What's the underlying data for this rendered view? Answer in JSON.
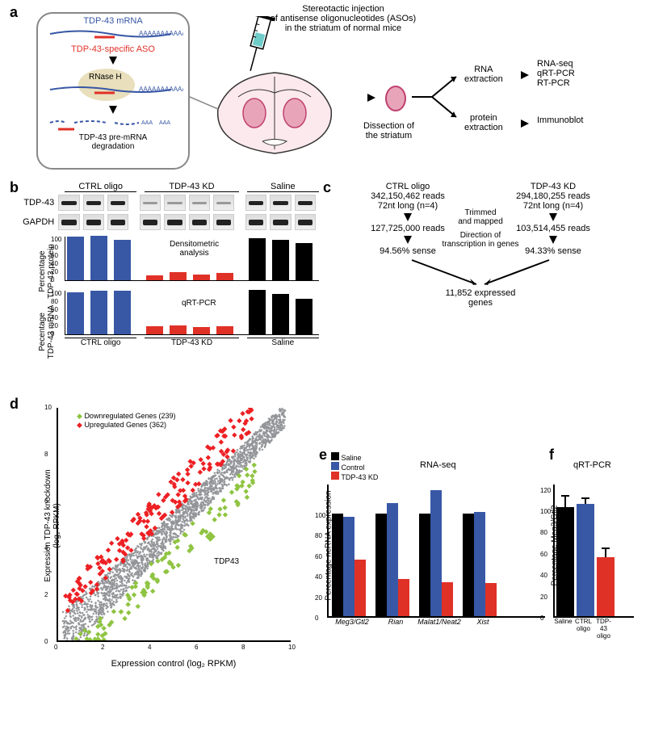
{
  "colors": {
    "blue": "#3858a6",
    "red": "#e03127",
    "black": "#000000",
    "green_pt": "#8fc442",
    "red_pt": "#ed2024",
    "gray_pt": "#939598",
    "rnase_bg": "#e9dfbc",
    "blue_line": "#3756a5",
    "red_line": "#e03127",
    "pink_fill": "#e8a5b9",
    "syringe_teal": "#6fcdc9"
  },
  "panel_a": {
    "box_title1": "TDP-43 mRNA",
    "box_title2": "TDP-43-specific ASO",
    "rnase": "RNase H",
    "degradation": "TDP-43 pre-mRNA\ndegradation",
    "inject_text": "Stereotactic injection\nof antisense oligonucleotides (ASOs)\nin the striatum of normal mice",
    "dissection": "Dissection of\nthe striatum",
    "rna_ext": "RNA\nextraction",
    "protein_ext": "protein\nextraction",
    "rna_out": "RNA-seq\nqRT-PCR\nRT-PCR",
    "protein_out": "Immunoblot"
  },
  "panel_b": {
    "headers": [
      "CTRL oligo",
      "TDP-43 KD",
      "Saline"
    ],
    "row1": "TDP-43",
    "row2": "GAPDH",
    "densito": "Densitometric\nanalysis",
    "qrt": "qRT-PCR",
    "ylabel1": "Percentage\nTDP-43 protein",
    "ylabel2": "Pecentage\nTDP-43 mRNA",
    "ctrl_protein": [
      108,
      110,
      100
    ],
    "kd_protein": [
      12,
      20,
      15,
      18
    ],
    "saline_protein": [
      105,
      100,
      92
    ],
    "ctrl_mrna": [
      105,
      108,
      108
    ],
    "kd_mrna": [
      20,
      22,
      19,
      20
    ],
    "saline_mrna": [
      110,
      100,
      88
    ],
    "yticks": [
      0,
      20,
      40,
      60,
      80,
      100
    ]
  },
  "panel_c": {
    "ctrl_head": "CTRL oligo\n342,150,462 reads\n72nt long (n=4)",
    "kd_head": "TDP-43 KD\n294,180,255 reads\n72nt long (n=4)",
    "step1": "Trimmed\nand mapped",
    "ctrl_mapped": "127,725,000 reads",
    "kd_mapped": "103,514,455 reads",
    "step2": "Direction of\ntranscription in genes",
    "ctrl_sense": "94.56% sense",
    "kd_sense": "94.33% sense",
    "genes": "11,852 expressed\ngenes"
  },
  "panel_d": {
    "legend_down": "Downregulated Genes (239)",
    "legend_up": "Upregulated Genes (362)",
    "xlabel": "Expression control (log₂ RPKM)",
    "ylabel": "Expression TDP-43 knockdown\n(log₂ RPKM)",
    "tdp43_label": "TDP43",
    "ticks": [
      0,
      2,
      4,
      6,
      8,
      10
    ]
  },
  "panel_e": {
    "title": "RNA-seq",
    "legend": [
      "Saline",
      "Control",
      "TDP-43 KD"
    ],
    "ylabel": "Percentage ncRNA expression",
    "genes": [
      "Meg3/Gtl2",
      "Rian",
      "Malat1/Neat2",
      "Xist"
    ],
    "saline": [
      100,
      100,
      100,
      100
    ],
    "control": [
      97,
      110,
      123,
      102
    ],
    "kd": [
      55,
      36,
      33,
      32
    ],
    "yticks": [
      0,
      20,
      40,
      60,
      80,
      100
    ]
  },
  "panel_f": {
    "title": "qRT-PCR",
    "ylabel": "Percentage Meg3/Gtl2",
    "labels": [
      "Saline",
      "CTRL\noligo",
      "TDP-43\noligo"
    ],
    "values": [
      102,
      105,
      55
    ],
    "errors": [
      10,
      5,
      8
    ],
    "yticks": [
      0,
      20,
      40,
      60,
      80,
      100,
      120
    ]
  }
}
